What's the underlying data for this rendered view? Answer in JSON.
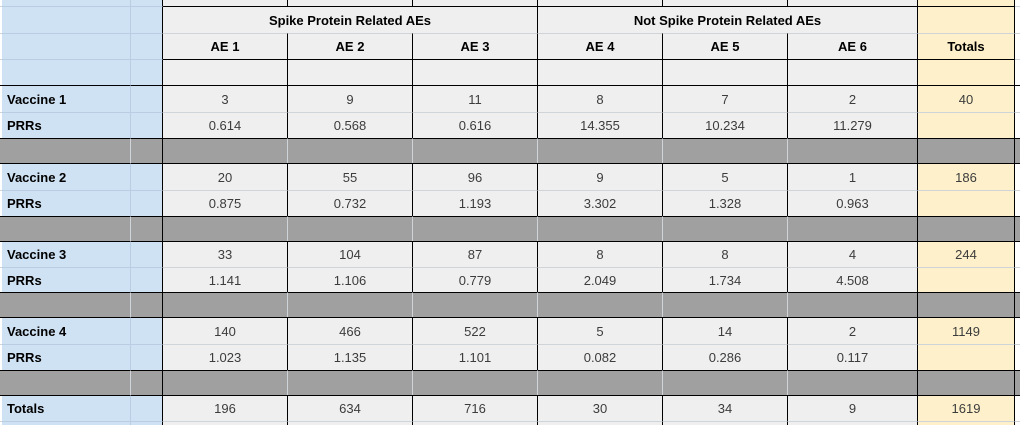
{
  "sheet": {
    "group_headers": [
      {
        "label": "Spike Protein Related AEs"
      },
      {
        "label": "Not Spike Protein Related AEs"
      }
    ],
    "ae_headers": [
      "AE 1",
      "AE 2",
      "AE 3",
      "AE 4",
      "AE 5",
      "AE 6"
    ],
    "totals_header": "Totals",
    "prrs_label": "PRRs",
    "vaccine_rows": [
      {
        "label": "Vaccine 1",
        "counts": [
          "3",
          "9",
          "11",
          "8",
          "7",
          "2"
        ],
        "total": "40",
        "prrs": [
          "0.614",
          "0.568",
          "0.616",
          "14.355",
          "10.234",
          "11.279"
        ]
      },
      {
        "label": "Vaccine 2",
        "counts": [
          "20",
          "55",
          "96",
          "9",
          "5",
          "1"
        ],
        "total": "186",
        "prrs": [
          "0.875",
          "0.732",
          "1.193",
          "3.302",
          "1.328",
          "0.963"
        ]
      },
      {
        "label": "Vaccine 3",
        "counts": [
          "33",
          "104",
          "87",
          "8",
          "8",
          "4"
        ],
        "total": "244",
        "prrs": [
          "1.141",
          "1.106",
          "0.779",
          "2.049",
          "1.734",
          "4.508"
        ]
      },
      {
        "label": "Vaccine 4",
        "counts": [
          "140",
          "466",
          "522",
          "5",
          "14",
          "2"
        ],
        "total": "1149",
        "prrs": [
          "1.023",
          "1.135",
          "1.101",
          "0.082",
          "0.286",
          "0.117"
        ]
      }
    ],
    "totals_row": {
      "label": "Totals",
      "counts": [
        "196",
        "634",
        "716",
        "30",
        "34",
        "9"
      ],
      "total": "1619"
    },
    "colors": {
      "label_column_blue": "#cfe2f3",
      "totals_column_yellow": "#fdf0ca",
      "cell_gray": "#efefef",
      "separator_gray": "#a0a0a0"
    }
  }
}
